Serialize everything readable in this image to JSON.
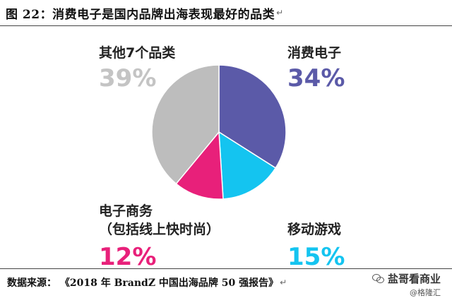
{
  "figure": {
    "title": "图 22：消费电子是国内品牌出海表现最好的品类",
    "para_mark": "↵",
    "source": "数据来源：  《2018 年 BrandZ 中国出海品牌 50 强报告》",
    "source_para_mark": "↵"
  },
  "watermark": {
    "main": "盐哥看商业",
    "sub": "@格隆汇",
    "icon": "wechat-icon"
  },
  "chart_data": {
    "type": "pie",
    "title": "图 22：消费电子是国内品牌出海表现最好的品类",
    "slices": [
      {
        "label": "消费电子",
        "pct_label": "34%",
        "value": 34,
        "color": "#5b5aa8",
        "label_color": "#5b5aa8"
      },
      {
        "label": "移动游戏",
        "pct_label": "15%",
        "value": 15,
        "color": "#14c4f0",
        "label_color": "#14c4f0"
      },
      {
        "label": "电子商务\n（包括线上快时尚）",
        "pct_label": "12%",
        "value": 12,
        "color": "#e8207a",
        "label_color": "#e8207a"
      },
      {
        "label": "其他7个品类",
        "pct_label": "39%",
        "value": 39,
        "color": "#bdbdbd",
        "label_color": "#c4c4c4"
      }
    ],
    "start_angle_deg": 0,
    "direction": "clockwise",
    "legend": "none"
  }
}
